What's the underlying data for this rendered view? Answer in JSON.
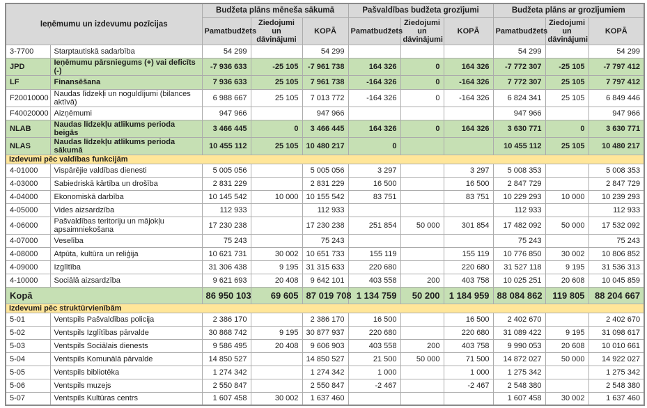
{
  "doc": {
    "header": {
      "positions_label": "Ieņēmumu un izdevumu pozīcijas",
      "groups": [
        "Budžeta plāns mēneša sākumā",
        "Pašvaldības budžeta grozījumi",
        "Budžeta plāns ar grozījumiem"
      ],
      "sub_columns": [
        "Pamatbudžets",
        "Ziedojumi un dāvinājumi",
        "KOPĀ"
      ]
    },
    "colors": {
      "header_bg": "#d9d9d9",
      "highlight_bg": "#c6e0b4",
      "section_bg": "#ffe699",
      "border": "#ababab",
      "outer_border": "#8a8a8a",
      "text": "#1f1f1f"
    },
    "rows": [
      {
        "type": "data",
        "code": "3-7700",
        "name": "Starptautiskā sadarbība",
        "values": [
          "54 299",
          "",
          "54 299",
          "",
          "",
          "",
          "54 299",
          "",
          "54 299"
        ]
      },
      {
        "type": "highlight",
        "code": "JPD",
        "name": "Ieņēmumu pārsniegums (+) vai deficīts (-)",
        "values": [
          "-7 936 633",
          "-25 105",
          "-7 961 738",
          "164 326",
          "0",
          "164 326",
          "-7 772 307",
          "-25 105",
          "-7 797 412"
        ]
      },
      {
        "type": "highlight",
        "code": "LF",
        "name": "Finansēšana",
        "values": [
          "7 936 633",
          "25 105",
          "7 961 738",
          "-164 326",
          "0",
          "-164 326",
          "7 772 307",
          "25 105",
          "7 797 412"
        ]
      },
      {
        "type": "data",
        "code": "F20010000",
        "name": "Naudas līdzekļi un noguldījumi (bilances aktīvā)",
        "values": [
          "6 988 667",
          "25 105",
          "7 013 772",
          "-164 326",
          "0",
          "-164 326",
          "6 824 341",
          "25 105",
          "6 849 446"
        ]
      },
      {
        "type": "data",
        "code": "F40020000",
        "name": "Aizņēmumi",
        "values": [
          "947 966",
          "",
          "947 966",
          "",
          "",
          "",
          "947 966",
          "",
          "947 966"
        ]
      },
      {
        "type": "highlight",
        "code": "NLAB",
        "name": "Naudas līdzekļu atlikums perioda beigās",
        "values": [
          "3 466 445",
          "0",
          "3 466 445",
          "164 326",
          "0",
          "164 326",
          "3 630 771",
          "0",
          "3 630 771"
        ]
      },
      {
        "type": "highlight",
        "code": "NLAS",
        "name": "Naudas līdzekļu atlikums perioda sākumā",
        "values": [
          "10 455 112",
          "25 105",
          "10 480 217",
          "0",
          "",
          "",
          "10 455 112",
          "25 105",
          "10 480 217"
        ]
      },
      {
        "type": "section",
        "name": "Izdevumi pēc valdības funkcijām"
      },
      {
        "type": "data",
        "code": "4-01000",
        "name": "Vispārējie valdības dienesti",
        "values": [
          "5 005 056",
          "",
          "5 005 056",
          "3 297",
          "",
          "3 297",
          "5 008 353",
          "",
          "5 008 353"
        ]
      },
      {
        "type": "data",
        "code": "4-03000",
        "name": "Sabiedriskā kārtība un drošība",
        "values": [
          "2 831 229",
          "",
          "2 831 229",
          "16 500",
          "",
          "16 500",
          "2 847 729",
          "",
          "2 847 729"
        ]
      },
      {
        "type": "data",
        "code": "4-04000",
        "name": "Ekonomiskā darbība",
        "values": [
          "10 145 542",
          "10 000",
          "10 155 542",
          "83 751",
          "",
          "83 751",
          "10 229 293",
          "10 000",
          "10 239 293"
        ]
      },
      {
        "type": "data",
        "code": "4-05000",
        "name": "Vides aizsardzība",
        "values": [
          "112 933",
          "",
          "112 933",
          "",
          "",
          "",
          "112 933",
          "",
          "112 933"
        ]
      },
      {
        "type": "data",
        "code": "4-06000",
        "name": "Pašvaldības teritoriju un mājokļu apsaimniekošana",
        "values": [
          "17 230 238",
          "",
          "17 230 238",
          "251 854",
          "50 000",
          "301 854",
          "17 482 092",
          "50 000",
          "17 532 092"
        ]
      },
      {
        "type": "data",
        "code": "4-07000",
        "name": "Veselība",
        "values": [
          "75 243",
          "",
          "75 243",
          "",
          "",
          "",
          "75 243",
          "",
          "75 243"
        ]
      },
      {
        "type": "data",
        "code": "4-08000",
        "name": "Atpūta, kultūra un reliģija",
        "values": [
          "10 621 731",
          "30 002",
          "10 651 733",
          "155 119",
          "",
          "155 119",
          "10 776 850",
          "30 002",
          "10 806 852"
        ]
      },
      {
        "type": "data",
        "code": "4-09000",
        "name": "Izglītība",
        "values": [
          "31 306 438",
          "9 195",
          "31 315 633",
          "220 680",
          "",
          "220 680",
          "31 527 118",
          "9 195",
          "31 536 313"
        ]
      },
      {
        "type": "data",
        "code": "4-10000",
        "name": "Sociālā aizsardzība",
        "values": [
          "9 621 693",
          "20 408",
          "9 642 101",
          "403 558",
          "200",
          "403 758",
          "10 025 251",
          "20 608",
          "10 045 859"
        ]
      },
      {
        "type": "total",
        "name": "Kopā",
        "values": [
          "86 950 103",
          "69 605",
          "87 019 708",
          "1 134 759",
          "50 200",
          "1 184 959",
          "88 084 862",
          "119 805",
          "88 204 667"
        ]
      },
      {
        "type": "section",
        "name": "Izdevumi pēc struktūrvienībām"
      },
      {
        "type": "data",
        "code": "5-01",
        "name": "Ventspils Pašvaldības policija",
        "values": [
          "2 386 170",
          "",
          "2 386 170",
          "16 500",
          "",
          "16 500",
          "2 402 670",
          "",
          "2 402 670"
        ]
      },
      {
        "type": "data",
        "code": "5-02",
        "name": "Ventspils Izglītības pārvalde",
        "values": [
          "30 868 742",
          "9 195",
          "30 877 937",
          "220 680",
          "",
          "220 680",
          "31 089 422",
          "9 195",
          "31 098 617"
        ]
      },
      {
        "type": "data",
        "code": "5-03",
        "name": "Ventspils Sociālais dienests",
        "values": [
          "9 586 495",
          "20 408",
          "9 606 903",
          "403 558",
          "200",
          "403 758",
          "9 990 053",
          "20 608",
          "10 010 661"
        ]
      },
      {
        "type": "data",
        "code": "5-04",
        "name": "Ventspils Komunālā pārvalde",
        "values": [
          "14 850 527",
          "",
          "14 850 527",
          "21 500",
          "50 000",
          "71 500",
          "14 872 027",
          "50 000",
          "14 922 027"
        ]
      },
      {
        "type": "data",
        "code": "5-05",
        "name": "Ventspils bibliotēka",
        "values": [
          "1 274 342",
          "",
          "1 274 342",
          "1 000",
          "",
          "1 000",
          "1 275 342",
          "",
          "1 275 342"
        ]
      },
      {
        "type": "data",
        "code": "5-06",
        "name": "Ventspils muzejs",
        "values": [
          "2 550 847",
          "",
          "2 550 847",
          "-2 467",
          "",
          "-2 467",
          "2 548 380",
          "",
          "2 548 380"
        ]
      },
      {
        "type": "data",
        "code": "5-07",
        "name": "Ventspils Kultūras centrs",
        "values": [
          "1 607 458",
          "30 002",
          "1 637 460",
          "",
          "",
          "",
          "1 607 458",
          "30 002",
          "1 637 460"
        ]
      }
    ]
  }
}
